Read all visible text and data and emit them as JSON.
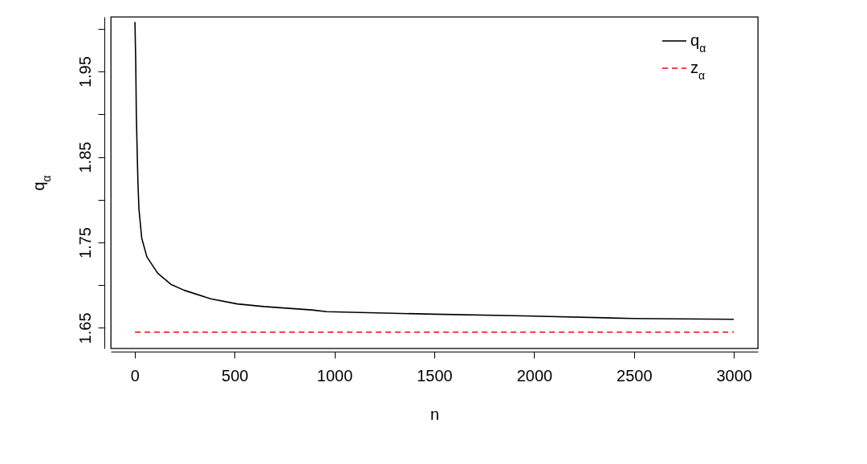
{
  "chart_data": {
    "type": "line",
    "xlabel": "n",
    "ylabel": "q$_{α}$",
    "xlim": [
      -120,
      3120
    ],
    "xticks": [
      0,
      500,
      1000,
      1500,
      2000,
      2500,
      3000
    ],
    "ylim": [
      1.626,
      2.014
    ],
    "yticks": [
      1.65,
      {
        "value": 1.7,
        "label": null
      },
      1.75,
      {
        "value": 1.8,
        "label": null
      },
      1.85,
      {
        "value": 1.9,
        "label": null
      },
      1.95,
      {
        "value": 2.0,
        "label": null
      }
    ],
    "grid": false,
    "legend": "top right",
    "series": [
      {
        "name": "q$_{α}$",
        "color": "#000000",
        "line_style": "solid",
        "x": [
          1,
          5,
          8,
          12,
          16,
          21,
          35,
          61,
          115,
          181,
          248,
          381,
          514,
          647,
          887,
          962,
          1500,
          1950,
          2500,
          3000
        ],
        "values": [
          2.008,
          1.961,
          1.899,
          1.858,
          1.82,
          1.789,
          1.755,
          1.733,
          1.714,
          1.701,
          1.694,
          1.684,
          1.678,
          1.675,
          1.671,
          1.669,
          1.666,
          1.664,
          1.661,
          1.66
        ]
      },
      {
        "name": "z$_{α}$",
        "color": "#ff0000",
        "line_style": "dashed",
        "x": [
          1,
          3000
        ],
        "values": [
          1.645,
          1.645
        ]
      }
    ]
  }
}
